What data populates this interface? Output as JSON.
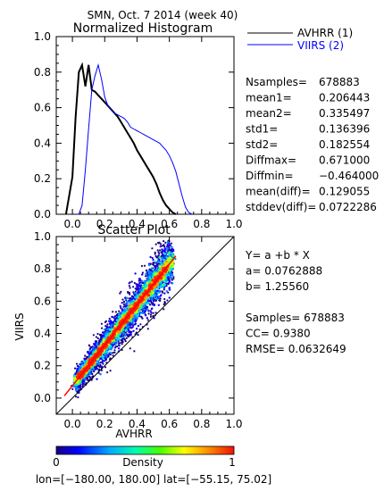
{
  "header": {
    "title": "SMN,  Oct. 7 2014 (week 40)"
  },
  "colors": {
    "series1": "#000000",
    "series2": "#0000ff",
    "fit": "#ff0000"
  },
  "chart_data": [
    {
      "type": "line",
      "title": "Normalized Histogram",
      "xlim": [
        -0.1,
        1.0
      ],
      "ylim": [
        0.0,
        1.0
      ],
      "xticks": [
        "0.0",
        "0.2",
        "0.4",
        "0.6",
        "0.8",
        "1.0"
      ],
      "yticks": [
        "0.0",
        "0.2",
        "0.4",
        "0.6",
        "0.8",
        "1.0"
      ],
      "series": [
        {
          "name": "AVHRR (1)",
          "color": "#000000",
          "x": [
            -0.04,
            0.0,
            0.02,
            0.04,
            0.06,
            0.08,
            0.1,
            0.12,
            0.14,
            0.16,
            0.18,
            0.2,
            0.22,
            0.24,
            0.26,
            0.28,
            0.3,
            0.32,
            0.34,
            0.36,
            0.38,
            0.4,
            0.42,
            0.44,
            0.46,
            0.48,
            0.5,
            0.52,
            0.54,
            0.56,
            0.58,
            0.6,
            0.62,
            0.64
          ],
          "values": [
            0.0,
            0.21,
            0.55,
            0.8,
            0.84,
            0.72,
            0.84,
            0.7,
            0.69,
            0.67,
            0.65,
            0.63,
            0.61,
            0.59,
            0.57,
            0.55,
            0.52,
            0.49,
            0.46,
            0.43,
            0.4,
            0.36,
            0.33,
            0.3,
            0.27,
            0.24,
            0.21,
            0.17,
            0.12,
            0.08,
            0.05,
            0.03,
            0.01,
            0.0
          ]
        },
        {
          "name": "VIIRS (2)",
          "color": "#0000ff",
          "x": [
            0.04,
            0.06,
            0.08,
            0.1,
            0.12,
            0.14,
            0.16,
            0.18,
            0.2,
            0.22,
            0.24,
            0.26,
            0.28,
            0.3,
            0.32,
            0.34,
            0.36,
            0.38,
            0.4,
            0.42,
            0.44,
            0.46,
            0.48,
            0.5,
            0.52,
            0.54,
            0.56,
            0.58,
            0.6,
            0.62,
            0.64,
            0.66,
            0.68,
            0.7,
            0.72,
            0.74
          ],
          "values": [
            0.0,
            0.05,
            0.25,
            0.48,
            0.7,
            0.78,
            0.84,
            0.76,
            0.66,
            0.61,
            0.59,
            0.57,
            0.56,
            0.55,
            0.54,
            0.52,
            0.49,
            0.48,
            0.47,
            0.46,
            0.45,
            0.44,
            0.43,
            0.42,
            0.41,
            0.4,
            0.38,
            0.36,
            0.33,
            0.29,
            0.24,
            0.17,
            0.1,
            0.04,
            0.01,
            0.0
          ]
        }
      ]
    },
    {
      "type": "scatter",
      "title": "Scatter Plot",
      "xlabel": "AVHRR",
      "ylabel": "VIIRS",
      "xlim": [
        -0.1,
        1.0
      ],
      "ylim": [
        -0.1,
        1.0
      ],
      "xticks": [
        "0.0",
        "0.2",
        "0.4",
        "0.6",
        "0.8",
        "1.0"
      ],
      "yticks": [
        "0.0",
        "0.2",
        "0.4",
        "0.6",
        "0.8",
        "1.0"
      ],
      "fit": {
        "a": 0.0762888,
        "b": 1.2556,
        "x_range": [
          -0.05,
          0.64
        ]
      },
      "one_to_one": true
    }
  ],
  "histogram_stats": [
    {
      "label": "Nsamples=",
      "value": "678883"
    },
    {
      "label": "mean1=",
      "value": "0.206443"
    },
    {
      "label": "mean2=",
      "value": "0.335497"
    },
    {
      "label": "std1=",
      "value": "0.136396"
    },
    {
      "label": "std2=",
      "value": "0.182554"
    },
    {
      "label": "Diffmax=",
      "value": "0.671000"
    },
    {
      "label": "Diffmin=",
      "value": "−0.464000"
    },
    {
      "label": "mean(diff)=",
      "value": "0.129055"
    },
    {
      "label": "stddev(diff)=",
      "value": "0.0722286"
    }
  ],
  "scatter_stats": [
    {
      "text": "Y= a +b * X"
    },
    {
      "text": "a= 0.0762888"
    },
    {
      "text": "b= 1.25560"
    },
    {
      "text": ""
    },
    {
      "text": "Samples= 678883"
    },
    {
      "text": "CC=   0.9380"
    },
    {
      "text": "RMSE= 0.0632649"
    }
  ],
  "colorbar": {
    "label": "Density",
    "min": "0",
    "max": "1"
  },
  "footer": {
    "text": "lon=[−180.00, 180.00] lat=[−55.15, 75.02]"
  }
}
